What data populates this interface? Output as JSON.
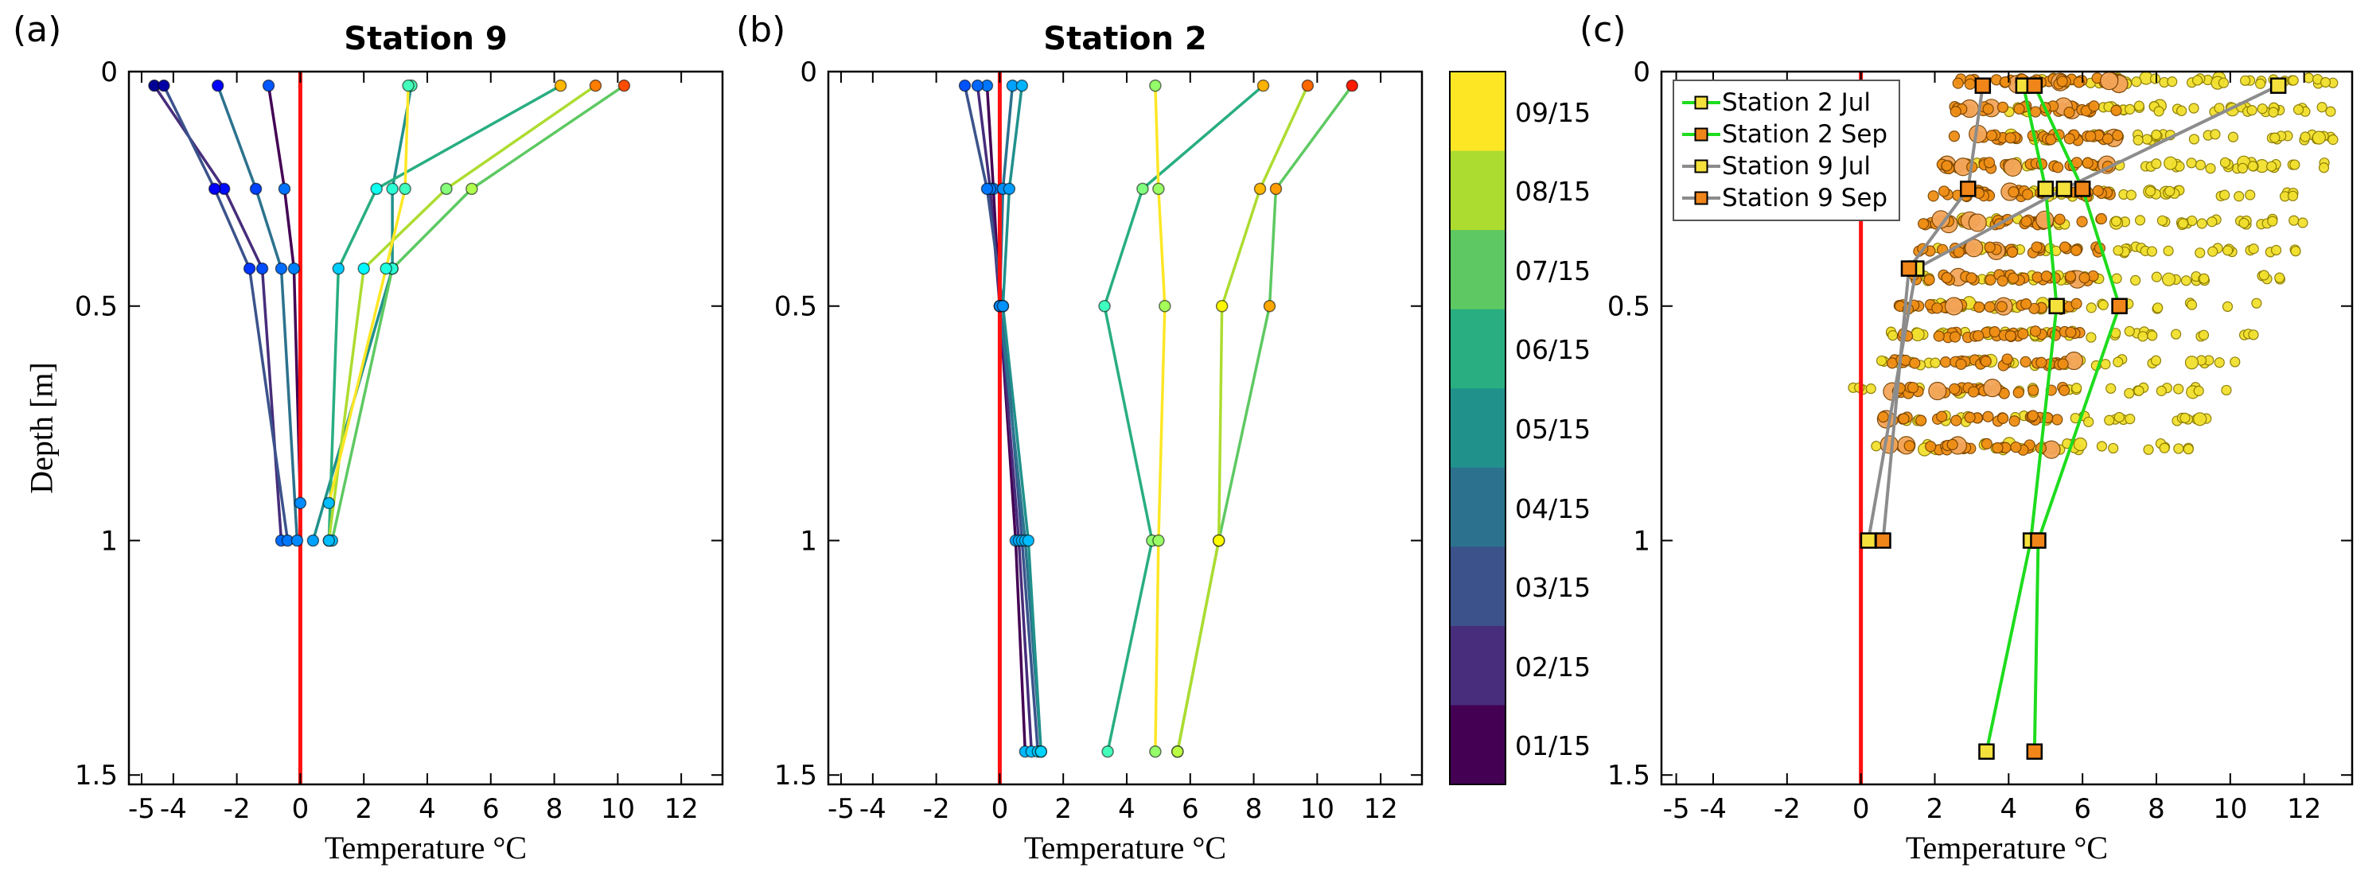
{
  "figure": {
    "background": "#ffffff",
    "panel_letters": {
      "a": "(a)",
      "b": "(b)",
      "c": "(c)"
    },
    "axis": {
      "xlabel": "Temperature °C",
      "ylabel": "Depth [m]",
      "xticks": [
        -5,
        -4,
        -2,
        0,
        2,
        4,
        6,
        8,
        10,
        12
      ],
      "yticks": [
        0,
        0.5,
        1,
        1.5
      ],
      "xlim": [
        -5.4,
        13.3
      ],
      "ylim": [
        0,
        1.52
      ],
      "zero_line_color": "#ff1010",
      "marker_colormap": {
        "type": "jet",
        "domain": [
          -5,
          14
        ]
      }
    },
    "colorbar": {
      "labels": [
        "09/15",
        "08/15",
        "07/15",
        "06/15",
        "05/15",
        "04/15",
        "03/15",
        "02/15",
        "01/15"
      ],
      "colors_top_to_bottom": [
        "#fde725",
        "#addc30",
        "#5ec962",
        "#28ae80",
        "#21918c",
        "#2c728e",
        "#3b528b",
        "#472d7b",
        "#440154"
      ]
    },
    "legend": {
      "items": [
        {
          "label": "Station 2 Jul",
          "line_color": "#1edc1e",
          "marker_color": "#f5e13c"
        },
        {
          "label": "Station 2 Sep",
          "line_color": "#1edc1e",
          "marker_color": "#f08519"
        },
        {
          "label": "Station 9 Jul",
          "line_color": "#8c8c8c",
          "marker_color": "#f5e13c"
        },
        {
          "label": "Station 9 Sep",
          "line_color": "#8c8c8c",
          "marker_color": "#f08519"
        }
      ]
    }
  },
  "chart_data": [
    {
      "type": "line",
      "panel": "a",
      "title": "Station 9",
      "xlabel": "Temperature °C",
      "ylabel": "Depth [m]",
      "xlim": [
        -5.4,
        13.3
      ],
      "ylim": [
        0,
        1.52
      ],
      "y_direction": "down",
      "ref_line_x": 0,
      "series": [
        {
          "name": "01/15",
          "color": "#440154",
          "depth": [
            0.03,
            0.25,
            0.42,
            0.92
          ],
          "temp": [
            -1.0,
            -0.5,
            -0.2,
            0.0
          ]
        },
        {
          "name": "02/15",
          "color": "#472d7b",
          "depth": [
            0.03,
            0.25,
            0.42,
            1.0
          ],
          "temp": [
            -4.6,
            -2.4,
            -1.2,
            -0.6
          ]
        },
        {
          "name": "03/15",
          "color": "#3b528b",
          "depth": [
            0.03,
            0.25,
            0.42,
            1.0
          ],
          "temp": [
            -4.3,
            -2.7,
            -1.6,
            -0.4
          ]
        },
        {
          "name": "04/15",
          "color": "#2c728e",
          "depth": [
            0.03,
            0.25,
            0.42,
            1.0
          ],
          "temp": [
            -2.6,
            -1.4,
            -0.6,
            -0.1
          ]
        },
        {
          "name": "05/15",
          "color": "#21918c",
          "depth": [
            0.03,
            0.25,
            0.42,
            1.0
          ],
          "temp": [
            3.5,
            2.9,
            2.9,
            0.4
          ]
        },
        {
          "name": "06/15",
          "color": "#28ae80",
          "depth": [
            0.03,
            0.25,
            0.42,
            1.0
          ],
          "temp": [
            8.2,
            2.4,
            1.2,
            0.9
          ]
        },
        {
          "name": "07/15",
          "color": "#5ec962",
          "depth": [
            0.03,
            0.25,
            0.42,
            1.0
          ],
          "temp": [
            10.2,
            5.4,
            2.9,
            1.0
          ]
        },
        {
          "name": "08/15",
          "color": "#addc30",
          "depth": [
            0.03,
            0.25,
            0.42,
            1.0
          ],
          "temp": [
            9.3,
            4.6,
            2.0,
            0.9
          ]
        },
        {
          "name": "09/15",
          "color": "#fde725",
          "depth": [
            0.03,
            0.25,
            0.42,
            0.92
          ],
          "temp": [
            3.4,
            3.3,
            2.7,
            0.9
          ]
        }
      ]
    },
    {
      "type": "line",
      "panel": "b",
      "title": "Station 2",
      "xlabel": "Temperature °C",
      "xlim": [
        -5.4,
        13.3
      ],
      "ylim": [
        0,
        1.52
      ],
      "y_direction": "down",
      "ref_line_x": 0,
      "series": [
        {
          "name": "01/15",
          "color": "#440154",
          "depth": [
            0.03,
            0.25,
            0.5,
            1.0,
            1.45
          ],
          "temp": [
            -0.4,
            -0.2,
            0.0,
            0.5,
            0.8
          ]
        },
        {
          "name": "02/15",
          "color": "#472d7b",
          "depth": [
            0.03,
            0.25,
            0.5,
            1.0,
            1.45
          ],
          "temp": [
            -0.7,
            -0.3,
            0.0,
            0.6,
            1.0
          ]
        },
        {
          "name": "03/15",
          "color": "#3b528b",
          "depth": [
            0.03,
            0.25,
            0.5,
            1.0,
            1.45
          ],
          "temp": [
            -1.1,
            -0.4,
            0.1,
            0.7,
            1.2
          ]
        },
        {
          "name": "04/15",
          "color": "#2c728e",
          "depth": [
            0.03,
            0.25,
            0.5,
            1.0,
            1.45
          ],
          "temp": [
            0.4,
            0.1,
            0.0,
            0.8,
            1.3
          ]
        },
        {
          "name": "05/15",
          "color": "#21918c",
          "depth": [
            0.03,
            0.25,
            0.5,
            1.0,
            1.45
          ],
          "temp": [
            0.7,
            0.3,
            0.1,
            0.9,
            1.3
          ]
        },
        {
          "name": "06/15",
          "color": "#28ae80",
          "depth": [
            0.03,
            0.25,
            0.5,
            1.0,
            1.45
          ],
          "temp": [
            8.3,
            4.5,
            3.3,
            4.8,
            3.4
          ]
        },
        {
          "name": "07/15",
          "color": "#5ec962",
          "depth": [
            0.03,
            0.25,
            0.5,
            1.0,
            1.45
          ],
          "temp": [
            11.1,
            8.7,
            8.5,
            6.9,
            5.6
          ]
        },
        {
          "name": "08/15",
          "color": "#addc30",
          "depth": [
            0.03,
            0.25,
            0.5,
            1.0,
            1.45
          ],
          "temp": [
            9.7,
            8.2,
            7.0,
            6.9,
            5.6
          ]
        },
        {
          "name": "09/15",
          "color": "#fde725",
          "depth": [
            0.03,
            0.25,
            0.5,
            1.0,
            1.45
          ],
          "temp": [
            4.9,
            5.0,
            5.2,
            5.0,
            4.9
          ]
        }
      ]
    },
    {
      "type": "scatter",
      "panel": "c",
      "xlabel": "Temperature °C",
      "xlim": [
        -5.4,
        13.3
      ],
      "ylim": [
        0,
        1.52
      ],
      "y_direction": "down",
      "ref_line_x": 0,
      "lines": [
        {
          "name": "Station 2 Jul",
          "line_color": "#1edc1e",
          "marker_color": "#f5e13c",
          "depth": [
            0.03,
            0.25,
            0.5,
            1.0,
            1.45
          ],
          "temp": [
            4.4,
            5.0,
            5.3,
            4.6,
            3.4
          ]
        },
        {
          "name": "Station 2 Sep",
          "line_color": "#1edc1e",
          "marker_color": "#f08519",
          "depth": [
            0.03,
            0.25,
            0.5,
            1.0,
            1.45
          ],
          "temp": [
            4.7,
            6.0,
            7.0,
            4.8,
            4.7
          ]
        },
        {
          "name": "Station 9 Jul",
          "line_color": "#8c8c8c",
          "marker_color": "#f5e13c",
          "depth": [
            0.03,
            0.25,
            0.42,
            1.0
          ],
          "temp": [
            11.3,
            5.5,
            1.5,
            0.2
          ]
        },
        {
          "name": "Station 9 Sep",
          "line_color": "#8c8c8c",
          "marker_color": "#f08519",
          "depth": [
            0.03,
            0.25,
            0.42,
            1.0
          ],
          "temp": [
            3.3,
            2.9,
            1.3,
            0.6
          ]
        }
      ],
      "scatter": {
        "jul_color": "#f2e02e",
        "jul_edge": "#8a7a00",
        "sep_color": "#ef8e15",
        "sep_big_color": "#f4a65a",
        "sep_edge": "#7a4400",
        "bands": [
          {
            "depth": 0.02,
            "jul": {
              "min": 4.5,
              "max": 13.0,
              "n": 44
            },
            "sep": {
              "min": 2.6,
              "max": 7.0,
              "n": 34
            }
          },
          {
            "depth": 0.08,
            "jul": {
              "min": 4.0,
              "max": 13.0,
              "n": 44
            },
            "sep": {
              "min": 2.4,
              "max": 7.0,
              "n": 34
            }
          },
          {
            "depth": 0.14,
            "jul": {
              "min": 3.5,
              "max": 12.8,
              "n": 42
            },
            "sep": {
              "min": 2.2,
              "max": 7.0,
              "n": 34
            }
          },
          {
            "depth": 0.2,
            "jul": {
              "min": 3.0,
              "max": 12.6,
              "n": 42
            },
            "sep": {
              "min": 2.0,
              "max": 7.0,
              "n": 33
            }
          },
          {
            "depth": 0.26,
            "jul": {
              "min": 2.6,
              "max": 12.4,
              "n": 40
            },
            "sep": {
              "min": 1.8,
              "max": 6.8,
              "n": 33
            }
          },
          {
            "depth": 0.32,
            "jul": {
              "min": 2.2,
              "max": 12.2,
              "n": 40
            },
            "sep": {
              "min": 1.6,
              "max": 6.6,
              "n": 32
            }
          },
          {
            "depth": 0.38,
            "jul": {
              "min": 1.8,
              "max": 12.0,
              "n": 38
            },
            "sep": {
              "min": 1.4,
              "max": 6.5,
              "n": 32
            }
          },
          {
            "depth": 0.44,
            "jul": {
              "min": 1.5,
              "max": 11.6,
              "n": 38
            },
            "sep": {
              "min": 1.2,
              "max": 6.3,
              "n": 31
            }
          },
          {
            "depth": 0.5,
            "jul": {
              "min": 1.2,
              "max": 11.2,
              "n": 36
            },
            "sep": {
              "min": 1.0,
              "max": 6.2,
              "n": 31
            }
          },
          {
            "depth": 0.56,
            "jul": {
              "min": 0.8,
              "max": 10.8,
              "n": 36
            },
            "sep": {
              "min": 1.0,
              "max": 6.0,
              "n": 30
            }
          },
          {
            "depth": 0.62,
            "jul": {
              "min": 0.5,
              "max": 10.4,
              "n": 34
            },
            "sep": {
              "min": 0.8,
              "max": 5.8,
              "n": 30
            }
          },
          {
            "depth": 0.68,
            "jul": {
              "min": -0.4,
              "max": 10.0,
              "n": 33
            },
            "sep": {
              "min": 0.8,
              "max": 5.6,
              "n": 29
            }
          },
          {
            "depth": 0.74,
            "jul": {
              "min": -0.5,
              "max": 9.6,
              "n": 32
            },
            "sep": {
              "min": 0.6,
              "max": 5.4,
              "n": 28
            }
          },
          {
            "depth": 0.8,
            "jul": {
              "min": 0.0,
              "max": 9.2,
              "n": 30
            },
            "sep": {
              "min": 0.6,
              "max": 5.2,
              "n": 28
            }
          }
        ]
      }
    }
  ]
}
